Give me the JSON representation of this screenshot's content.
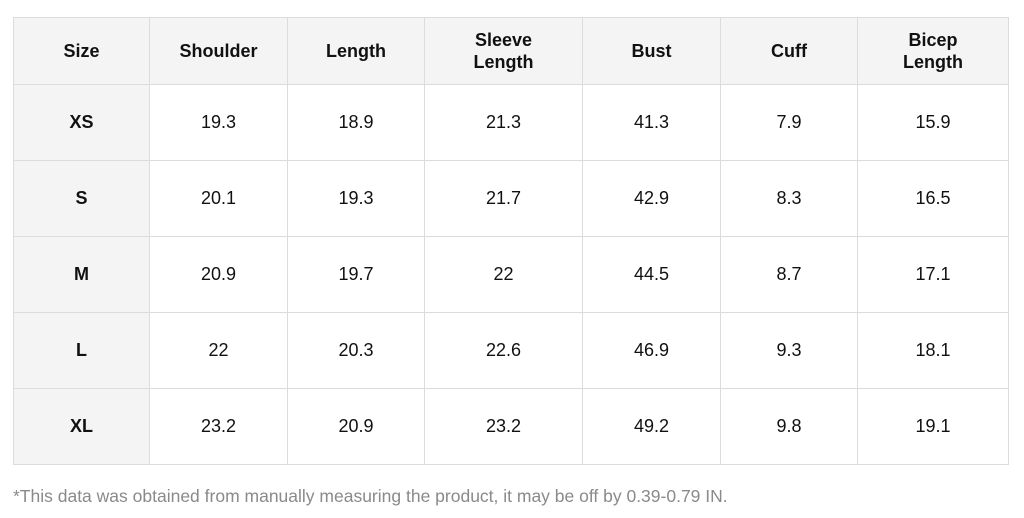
{
  "table": {
    "header": [
      "Size",
      "Shoulder",
      "Length",
      "Sleeve Length",
      "Bust",
      "Cuff",
      "Bicep Length"
    ],
    "rows": [
      [
        "XS",
        "19.3",
        "18.9",
        "21.3",
        "41.3",
        "7.9",
        "15.9"
      ],
      [
        "S",
        "20.1",
        "19.3",
        "21.7",
        "42.9",
        "8.3",
        "16.5"
      ],
      [
        "M",
        "20.9",
        "19.7",
        "22",
        "44.5",
        "8.7",
        "17.1"
      ],
      [
        "L",
        "22",
        "20.3",
        "22.6",
        "46.9",
        "9.3",
        "18.1"
      ],
      [
        "XL",
        "23.2",
        "20.9",
        "23.2",
        "49.2",
        "9.8",
        "19.1"
      ]
    ]
  },
  "footnote": "*This data was obtained from manually measuring the product, it may be off by 0.39-0.79 IN."
}
